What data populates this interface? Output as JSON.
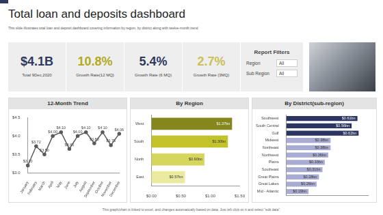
{
  "header": {
    "title": "Total loan and deposits dashboard",
    "subtitle": "This slide illustrates total loan and deposit dashboard covering information by region, by district along with twelve-month trend"
  },
  "kpis": [
    {
      "value": "$4.1B",
      "label": "Total 9Dec,2020",
      "color": "#2e3a5e"
    },
    {
      "value": "10.8%",
      "label": "Growth Rate(12 MQ)",
      "color": "#b3aa1e"
    },
    {
      "value": "5.4%",
      "label": "Growth Rate (6 MQ)",
      "color": "#2e3a5e"
    },
    {
      "value": "2.7%",
      "label": "Growth Rate (3MQ)",
      "color": "#c9c155"
    }
  ],
  "filters": {
    "title": "Report Filters",
    "rows": [
      {
        "label": "Region",
        "value": "All"
      },
      {
        "label": "Sub Region",
        "value": "All"
      }
    ]
  },
  "footer": "This graph/chart is linked to excel, and changes automatically based on data. Just left click on it and select \"edit data\".",
  "chart_data": [
    {
      "type": "line",
      "title": "12-Month Trend",
      "categories": [
        "January",
        "February",
        "March",
        "April",
        "May",
        "June",
        "July",
        "August",
        "September",
        "October",
        "November",
        "December"
      ],
      "values": [
        3.2,
        3.72,
        3.5,
        4.0,
        4.1,
        3.65,
        4.0,
        4.1,
        3.8,
        4.1,
        3.75,
        4.06
      ],
      "value_labels": [
        "$3.20",
        "$3.72",
        "$3.50",
        "$4.00",
        "$4.10",
        "$3.65",
        "$4.00",
        "$4.10",
        "$3.80",
        "$4.10",
        "$3.75",
        "$4.06"
      ],
      "color": "#5a5a5a",
      "marker": "circle",
      "ylim": [
        3,
        4.5
      ],
      "yticks": [
        {
          "value": 3,
          "label": "$3.0"
        },
        {
          "value": 3.5,
          "label": "$3.5"
        },
        {
          "value": 4,
          "label": "$4.0"
        },
        {
          "value": 4.5,
          "label": "$4.5"
        }
      ],
      "grid": false,
      "data_labels": true
    },
    {
      "type": "bar",
      "orientation": "horizontal",
      "title": "By Region",
      "categories": [
        "West",
        "South",
        "North",
        "East"
      ],
      "values": [
        1.37,
        1.3,
        0.9,
        0.57
      ],
      "value_labels": [
        "$1.37bn",
        "$1.30bn",
        "$0.90bn",
        "$0.57bn"
      ],
      "colors": [
        "#86861e",
        "#c2c22a",
        "#d6d65e",
        "#ebeb9f"
      ],
      "xlim": [
        0,
        1.5
      ],
      "xticks": [
        {
          "value": 0,
          "label": "$0.00"
        },
        {
          "value": 0.5,
          "label": "$0.50"
        },
        {
          "value": 1,
          "label": "$1.00"
        },
        {
          "value": 1.5,
          "label": "$1.50"
        }
      ],
      "grid": false,
      "data_labels": true
    },
    {
      "type": "bar",
      "orientation": "horizontal",
      "title": "By District(sub-region)",
      "categories": [
        "Southwest",
        "South Central",
        "Gulf",
        "Midwest",
        "Northeast",
        "Northwest",
        "Plains",
        "Southeast",
        "Great Plains",
        "Great Lakes",
        "Mid - Atlantic"
      ],
      "values": [
        0.61,
        0.56,
        0.62,
        0.38,
        0.38,
        0.36,
        0.33,
        0.31,
        0.28,
        0.26,
        0.19
      ],
      "value_labels": [
        "$0.61bn",
        "$0.56bn",
        "$0.62bn",
        "$0.38bn",
        "$0.38bn",
        "$0.36bn",
        "$0.33bn",
        "$0.31bn",
        "$0.28bn",
        "$0.26bn",
        "$0.19bn"
      ],
      "colors": [
        "#2a3560",
        "#2a3560",
        "#2a3560",
        "#a9acd2",
        "#a9acd2",
        "#a9acd2",
        "#a9acd2",
        "#a9acd2",
        "#a9acd2",
        "#a9acd2",
        "#a9acd2"
      ],
      "xlim": [
        0,
        0.7
      ],
      "grid": false,
      "data_labels": true,
      "tick_labels": "y"
    }
  ]
}
